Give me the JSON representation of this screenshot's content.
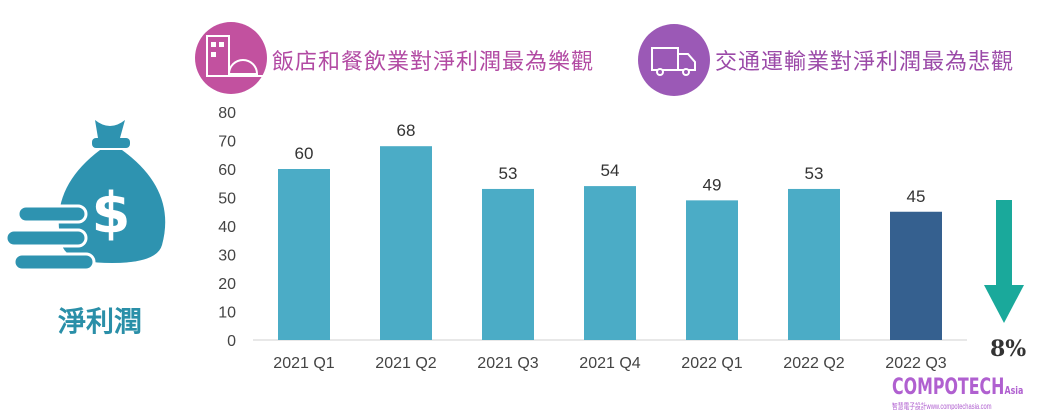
{
  "headers": [
    {
      "text": "飯店和餐飲業對淨利潤最為樂觀",
      "icon": "hotel-restaurant-icon",
      "color": "#c2519f"
    },
    {
      "text": "交通運輸業對淨利潤最為悲觀",
      "icon": "delivery-truck-icon",
      "color": "#9b59b6"
    }
  ],
  "side_label": "淨利潤",
  "change_label": "8%",
  "watermark": {
    "brand": "COMPOTECH",
    "suffix": "Asia",
    "tagline": "智慧電子設計www.compotechasia.com"
  },
  "colors": {
    "bar": "#4bacc6",
    "highlight_bar": "#35608f",
    "arrow": "#1aa99b",
    "icon": "#2e93b0"
  },
  "chart_data": {
    "type": "bar",
    "categories": [
      "2021 Q1",
      "2021 Q2",
      "2021 Q3",
      "2021 Q4",
      "2022 Q1",
      "2022 Q2",
      "2022 Q3"
    ],
    "values": [
      60,
      68,
      53,
      54,
      49,
      53,
      45
    ],
    "highlight_index": 6,
    "ylim": [
      0,
      80
    ],
    "yticks": [
      0,
      10,
      20,
      30,
      40,
      50,
      60,
      70,
      80
    ],
    "grid": false,
    "data_labels": true
  }
}
